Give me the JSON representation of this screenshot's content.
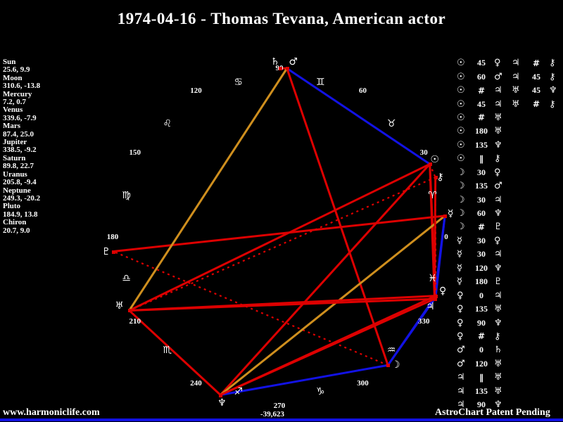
{
  "title": "1974-04-16 - Thomas Tevana, American actor",
  "watermark": "www.harmoniclife.com",
  "patent_note": "AstroChart Patent Pending",
  "planet_list": [
    {
      "name": "Sun",
      "value": "25.6, 9.9"
    },
    {
      "name": "Moon",
      "value": "310.6, -13.8"
    },
    {
      "name": "Mercury",
      "value": "7.2, 0.7"
    },
    {
      "name": "Venus",
      "value": "339.6, -7.9"
    },
    {
      "name": "Mars",
      "value": "87.4, 25.0"
    },
    {
      "name": "Jupiter",
      "value": "338.5, -9.2"
    },
    {
      "name": "Saturn",
      "value": "89.8, 22.7"
    },
    {
      "name": "Uranus",
      "value": "205.8, -9.4"
    },
    {
      "name": "Neptune",
      "value": "249.3, -20.2"
    },
    {
      "name": "Pluto",
      "value": "184.9, 13.8"
    },
    {
      "name": "Chiron",
      "value": "20.7, 9.0"
    }
  ],
  "chart_data": {
    "type": "scatter",
    "description": "Declination wheel: ecliptic longitude mapped counter-clockwise around an ellipse (0 at right, 90 top, 180 left, 270 bottom); aspect lines connect planets",
    "degree_labels": [
      0,
      30,
      60,
      90,
      120,
      150,
      180,
      210,
      240,
      270,
      300,
      330
    ],
    "bottom_sublabel": "-39,623",
    "signs": [
      {
        "name": "aries",
        "glyph": "♈"
      },
      {
        "name": "taurus",
        "glyph": "♉"
      },
      {
        "name": "gemini",
        "glyph": "♊"
      },
      {
        "name": "cancer",
        "glyph": "♋"
      },
      {
        "name": "leo",
        "glyph": "♌"
      },
      {
        "name": "virgo",
        "glyph": "♍"
      },
      {
        "name": "libra",
        "glyph": "♎"
      },
      {
        "name": "scorpio",
        "glyph": "♏"
      },
      {
        "name": "sagittarius",
        "glyph": "♐"
      },
      {
        "name": "capricorn",
        "glyph": "♑"
      },
      {
        "name": "aquarius",
        "glyph": "♒"
      },
      {
        "name": "pisces",
        "glyph": "♓"
      }
    ],
    "planets": [
      {
        "name": "Sun",
        "glyph": "☉",
        "lon": 25.6,
        "dec": 9.9,
        "gdx": 7,
        "gdy": -6
      },
      {
        "name": "Moon",
        "glyph": "☽",
        "lon": 310.6,
        "dec": -13.8,
        "gdx": 11,
        "gdy": 0
      },
      {
        "name": "Mercury",
        "glyph": "☿",
        "lon": 7.2,
        "dec": 0.7,
        "gdx": 8,
        "gdy": -3
      },
      {
        "name": "Venus",
        "glyph": "♀",
        "lon": 339.6,
        "dec": -7.9,
        "gdx": 10,
        "gdy": -7
      },
      {
        "name": "Mars",
        "glyph": "♂",
        "lon": 87.4,
        "dec": 25.0,
        "gdx": 9,
        "gdy": -9
      },
      {
        "name": "Jupiter",
        "glyph": "♃",
        "lon": 338.5,
        "dec": -9.2,
        "gdx": -6,
        "gdy": 11
      },
      {
        "name": "Saturn",
        "glyph": "♄",
        "lon": 89.8,
        "dec": 22.7,
        "gdx": -7,
        "gdy": -9
      },
      {
        "name": "Uranus",
        "glyph": "♅",
        "lon": 205.8,
        "dec": -9.4,
        "gdx": -14,
        "gdy": -6
      },
      {
        "name": "Neptune",
        "glyph": "♆",
        "lon": 249.3,
        "dec": -20.2,
        "gdx": 2,
        "gdy": 11
      },
      {
        "name": "Pluto",
        "glyph": "♇",
        "lon": 184.9,
        "dec": 13.8,
        "gdx": -10,
        "gdy": 0
      },
      {
        "name": "Chiron",
        "glyph": "⚷",
        "lon": 20.7,
        "dec": 9.0,
        "gdx": 7,
        "gdy": 0
      }
    ],
    "aspects": [
      {
        "a": "Sun",
        "b": "Venus",
        "type": "45"
      },
      {
        "a": "Sun",
        "b": "Mars",
        "type": "60"
      },
      {
        "a": "Sun",
        "b": "Jupiter",
        "type": "contra"
      },
      {
        "a": "Sun",
        "b": "Jupiter",
        "type": "45"
      },
      {
        "a": "Sun",
        "b": "Uranus",
        "type": "contra"
      },
      {
        "a": "Sun",
        "b": "Uranus",
        "type": "180"
      },
      {
        "a": "Sun",
        "b": "Neptune",
        "type": "135"
      },
      {
        "a": "Sun",
        "b": "Chiron",
        "type": "par"
      },
      {
        "a": "Moon",
        "b": "Venus",
        "type": "30"
      },
      {
        "a": "Moon",
        "b": "Mars",
        "type": "135"
      },
      {
        "a": "Moon",
        "b": "Jupiter",
        "type": "30"
      },
      {
        "a": "Moon",
        "b": "Neptune",
        "type": "60"
      },
      {
        "a": "Moon",
        "b": "Pluto",
        "type": "contra"
      },
      {
        "a": "Mercury",
        "b": "Venus",
        "type": "30"
      },
      {
        "a": "Mercury",
        "b": "Jupiter",
        "type": "30"
      },
      {
        "a": "Mercury",
        "b": "Neptune",
        "type": "120"
      },
      {
        "a": "Mercury",
        "b": "Pluto",
        "type": "180"
      },
      {
        "a": "Venus",
        "b": "Jupiter",
        "type": "0"
      },
      {
        "a": "Venus",
        "b": "Uranus",
        "type": "135"
      },
      {
        "a": "Venus",
        "b": "Neptune",
        "type": "90"
      },
      {
        "a": "Venus",
        "b": "Chiron",
        "type": "contra"
      },
      {
        "a": "Mars",
        "b": "Saturn",
        "type": "0"
      },
      {
        "a": "Mars",
        "b": "Uranus",
        "type": "120"
      },
      {
        "a": "Jupiter",
        "b": "Uranus",
        "type": "par"
      },
      {
        "a": "Jupiter",
        "b": "Uranus",
        "type": "135"
      },
      {
        "a": "Jupiter",
        "b": "Neptune",
        "type": "90"
      },
      {
        "a": "Jupiter",
        "b": "Chiron",
        "type": "contra"
      },
      {
        "a": "Jupiter",
        "b": "Chiron",
        "type": "45"
      },
      {
        "a": "Uranus",
        "b": "Neptune",
        "type": "45"
      },
      {
        "a": "Uranus",
        "b": "Chiron",
        "type": "contra"
      }
    ],
    "colors": {
      "red": "#dd0101",
      "blue": "#1212e4",
      "gold": "#cf8f1e",
      "dot": "#dd0101",
      "bottom_bar": "#1212e4"
    }
  },
  "aspect_table": {
    "col1": [
      {
        "a": "☉",
        "n": "45",
        "b": "♀"
      },
      {
        "a": "☉",
        "n": "60",
        "b": "♂"
      },
      {
        "a": "☉",
        "n": "#",
        "b": "♃"
      },
      {
        "a": "☉",
        "n": "45",
        "b": "♃"
      },
      {
        "a": "☉",
        "n": "#",
        "b": "♅"
      },
      {
        "a": "☉",
        "n": "180",
        "b": "♅"
      },
      {
        "a": "☉",
        "n": "135",
        "b": "♆"
      },
      {
        "a": "☉",
        "n": "∥",
        "b": "⚷"
      },
      {
        "a": "☽",
        "n": "30",
        "b": "♀"
      },
      {
        "a": "☽",
        "n": "135",
        "b": "♂"
      },
      {
        "a": "☽",
        "n": "30",
        "b": "♃"
      },
      {
        "a": "☽",
        "n": "60",
        "b": "♆"
      },
      {
        "a": "☽",
        "n": "#",
        "b": "♇"
      },
      {
        "a": "☿",
        "n": "30",
        "b": "♀"
      },
      {
        "a": "☿",
        "n": "30",
        "b": "♃"
      },
      {
        "a": "☿",
        "n": "120",
        "b": "♆"
      },
      {
        "a": "☿",
        "n": "180",
        "b": "♇"
      },
      {
        "a": "♀",
        "n": "0",
        "b": "♃"
      },
      {
        "a": "♀",
        "n": "135",
        "b": "♅"
      },
      {
        "a": "♀",
        "n": "90",
        "b": "♆"
      },
      {
        "a": "♀",
        "n": "#",
        "b": "⚷"
      },
      {
        "a": "♂",
        "n": "0",
        "b": "♄"
      },
      {
        "a": "♂",
        "n": "120",
        "b": "♅"
      },
      {
        "a": "♃",
        "n": "∥",
        "b": "♅"
      },
      {
        "a": "♃",
        "n": "135",
        "b": "♅"
      },
      {
        "a": "♃",
        "n": "90",
        "b": "♆"
      }
    ],
    "col2": [
      {
        "a": "♃",
        "n": "#",
        "b": "⚷"
      },
      {
        "a": "♃",
        "n": "45",
        "b": "⚷"
      },
      {
        "a": "♅",
        "n": "45",
        "b": "♆"
      },
      {
        "a": "♅",
        "n": "#",
        "b": "⚷"
      }
    ]
  }
}
